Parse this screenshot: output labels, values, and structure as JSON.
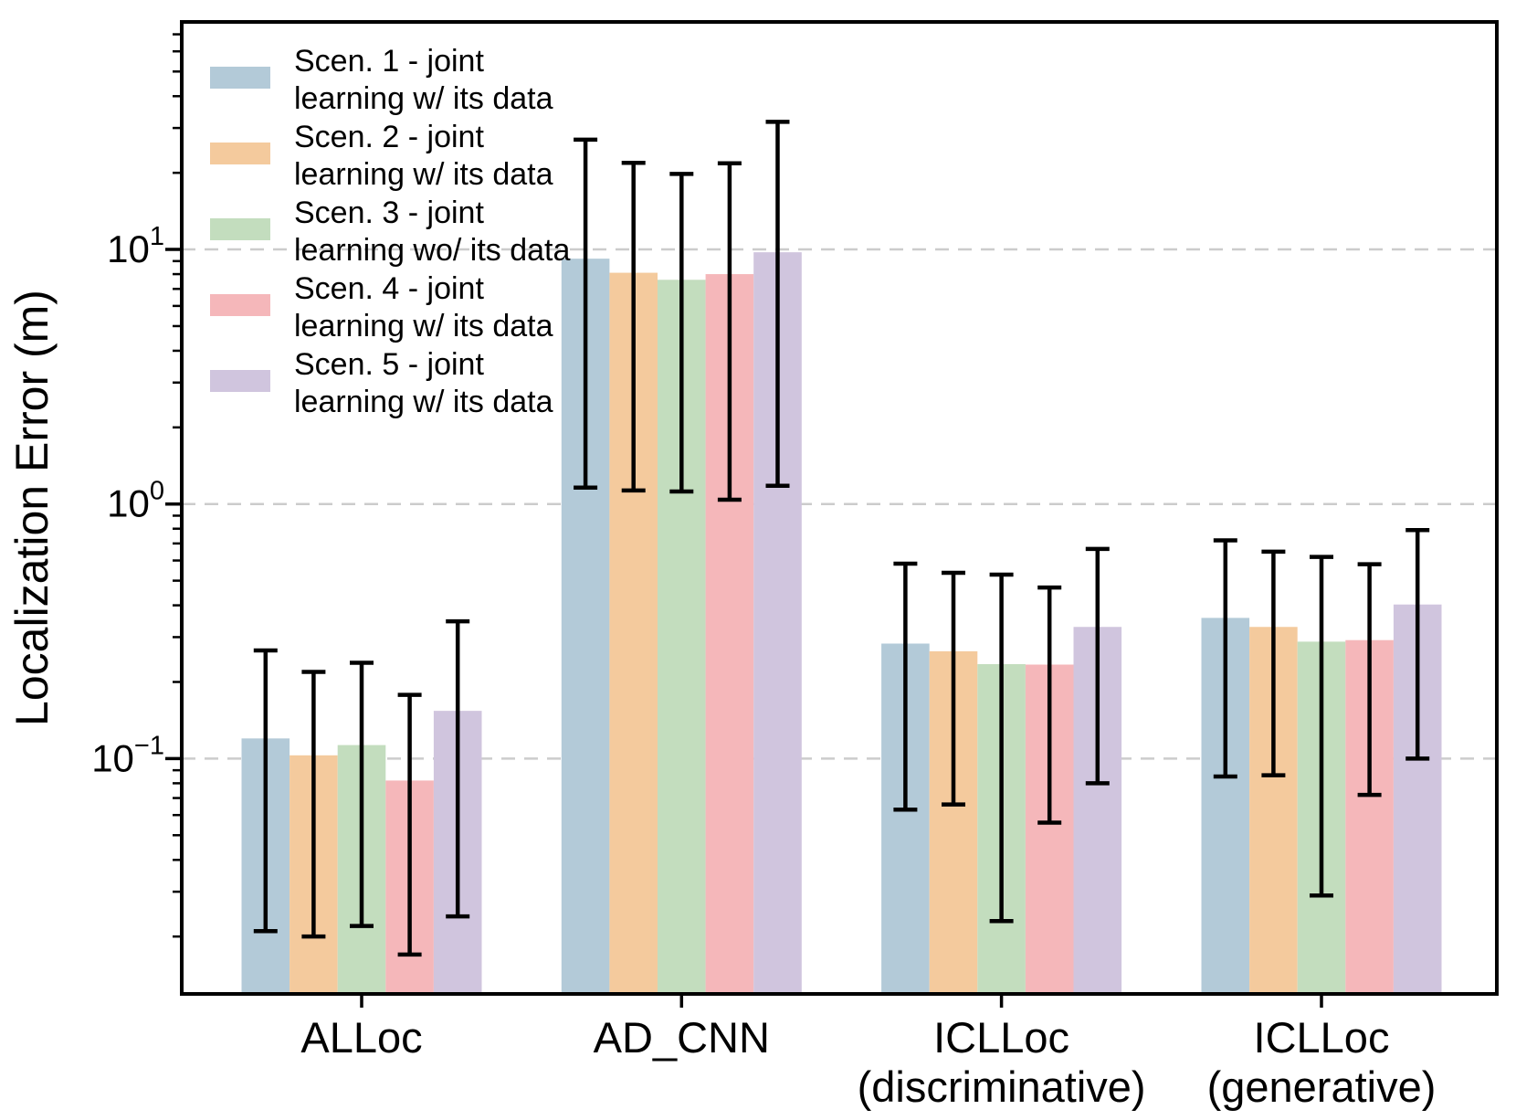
{
  "figure": {
    "background": "#ffffff",
    "text_color": "#000000",
    "grid_color": "#cccccc",
    "spine_color": "#000000",
    "errorbar_color": "#000000"
  },
  "chart_data": {
    "type": "bar",
    "title": "",
    "xlabel": "",
    "ylabel": "Localization Error (m)",
    "yscale": "log",
    "ylim": [
      0.0119,
      78.3
    ],
    "grid": "horizontal dashed at powers of ten",
    "legend_position": "upper left",
    "yticks": [
      {
        "value": 10,
        "base": "10",
        "exp": "1"
      },
      {
        "value": 1,
        "base": "10",
        "exp": "0"
      },
      {
        "value": 0.1,
        "base": "10",
        "exp": "−1"
      }
    ],
    "categories": [
      "ALLoc",
      "AD_CNN",
      "ICLLoc (discriminative)",
      "ICLLoc (generative)"
    ],
    "category_label_lines": [
      [
        "ALLoc"
      ],
      [
        "AD_CNN"
      ],
      [
        "ICLLoc",
        "(discriminative)"
      ],
      [
        "ICLLoc",
        "(generative)"
      ]
    ],
    "series": [
      {
        "name": "Scen. 1 - joint learning w/ its data",
        "label_lines": [
          "Scen. 1 - joint",
          "learning w/ its data"
        ],
        "color": "#b3cad8",
        "values": [
          0.12,
          9.2,
          0.283,
          0.357
        ],
        "err_low": [
          0.021,
          1.16,
          0.063,
          0.085
        ],
        "err_high": [
          0.266,
          27.0,
          0.583,
          0.72
        ]
      },
      {
        "name": "Scen. 2 - joint learning w/ its data",
        "label_lines": [
          "Scen. 2 - joint",
          "learning w/ its data"
        ],
        "color": "#f4ca9d",
        "values": [
          0.103,
          8.1,
          0.264,
          0.329
        ],
        "err_low": [
          0.02,
          1.13,
          0.066,
          0.086
        ],
        "err_high": [
          0.219,
          21.9,
          0.537,
          0.65
        ]
      },
      {
        "name": "Scen. 3 - joint learning wo/ its data",
        "label_lines": [
          "Scen. 3 - joint",
          "learning wo/ its data"
        ],
        "color": "#c3ddbe",
        "values": [
          0.113,
          7.6,
          0.235,
          0.288
        ],
        "err_low": [
          0.022,
          1.12,
          0.023,
          0.029
        ],
        "err_high": [
          0.238,
          19.8,
          0.528,
          0.62
        ]
      },
      {
        "name": "Scen. 4 - joint learning w/ its data",
        "label_lines": [
          "Scen. 4 - joint",
          "learning w/ its data"
        ],
        "color": "#f5b7ba",
        "values": [
          0.082,
          8.0,
          0.234,
          0.292
        ],
        "err_low": [
          0.017,
          1.04,
          0.056,
          0.072
        ],
        "err_high": [
          0.178,
          21.8,
          0.47,
          0.58
        ]
      },
      {
        "name": "Scen. 5 - joint learning w/ its data",
        "label_lines": [
          "Scen. 5 - joint",
          "learning w/ its data"
        ],
        "color": "#d0c5de",
        "values": [
          0.154,
          9.75,
          0.329,
          0.403
        ],
        "err_low": [
          0.024,
          1.18,
          0.08,
          0.1
        ],
        "err_high": [
          0.346,
          31.7,
          0.666,
          0.79
        ]
      }
    ]
  }
}
